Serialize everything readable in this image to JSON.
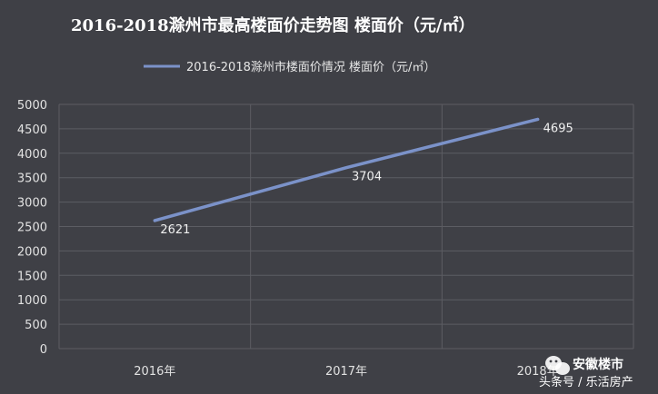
{
  "chart_data": {
    "type": "line",
    "title": "2016-2018滁州市最高楼面价走势图 楼面价（元/㎡）",
    "xlabel": "",
    "ylabel": "",
    "categories": [
      "2016年",
      "2017年",
      "2018年"
    ],
    "series": [
      {
        "name": "2016-2018滁州市楼面价情况 楼面价（元/㎡）",
        "values": [
          2621,
          3704,
          4695
        ],
        "color": "#7b92c9"
      }
    ],
    "data_labels": [
      "2621",
      "3704",
      "4695"
    ],
    "ylim": [
      0,
      5000
    ],
    "yticks": [
      "0",
      "500",
      "1000",
      "1500",
      "2000",
      "2500",
      "3000",
      "3500",
      "4000",
      "4500",
      "5000"
    ],
    "grid": true,
    "legend_position": "top"
  },
  "watermark": {
    "title": "安徽楼市",
    "subtitle": "头条号 / 乐活房产",
    "icon": "wechat-icon"
  }
}
